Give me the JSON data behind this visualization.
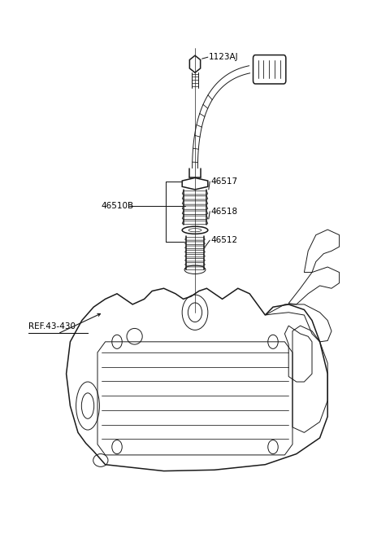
{
  "background_color": "#ffffff",
  "line_color": "#1a1a1a",
  "label_color": "#000000",
  "parts": [
    "1123AJ",
    "46517",
    "46510B",
    "46518",
    "46512"
  ],
  "ref_label": "REF.43-430"
}
